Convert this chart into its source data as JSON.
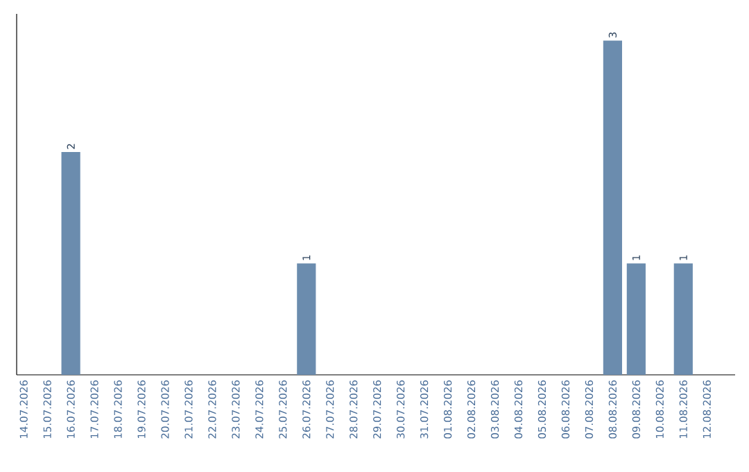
{
  "chart_data": {
    "type": "bar",
    "categories": [
      "14.07.2026",
      "15.07.2026",
      "16.07.2026",
      "17.07.2026",
      "18.07.2026",
      "19.07.2026",
      "20.07.2026",
      "21.07.2026",
      "22.07.2026",
      "23.07.2026",
      "24.07.2026",
      "25.07.2026",
      "26.07.2026",
      "27.07.2026",
      "28.07.2026",
      "29.07.2026",
      "30.07.2026",
      "31.07.2026",
      "01.08.2026",
      "02.08.2026",
      "03.08.2026",
      "04.08.2026",
      "05.08.2026",
      "06.08.2026",
      "07.08.2026",
      "08.08.2026",
      "09.08.2026",
      "10.08.2026",
      "11.08.2026",
      "12.08.2026"
    ],
    "values": [
      0,
      0,
      2,
      0,
      0,
      0,
      0,
      0,
      0,
      0,
      0,
      0,
      1,
      0,
      0,
      0,
      0,
      0,
      0,
      0,
      0,
      0,
      0,
      0,
      0,
      3,
      1,
      0,
      1,
      0
    ],
    "value_labels": [
      null,
      null,
      "2",
      null,
      null,
      null,
      null,
      null,
      null,
      null,
      null,
      null,
      "1",
      null,
      null,
      null,
      null,
      null,
      null,
      null,
      null,
      null,
      null,
      null,
      null,
      "3",
      "1",
      null,
      "1",
      null
    ],
    "color": "#6b8cae",
    "tick_labels": "x"
  }
}
